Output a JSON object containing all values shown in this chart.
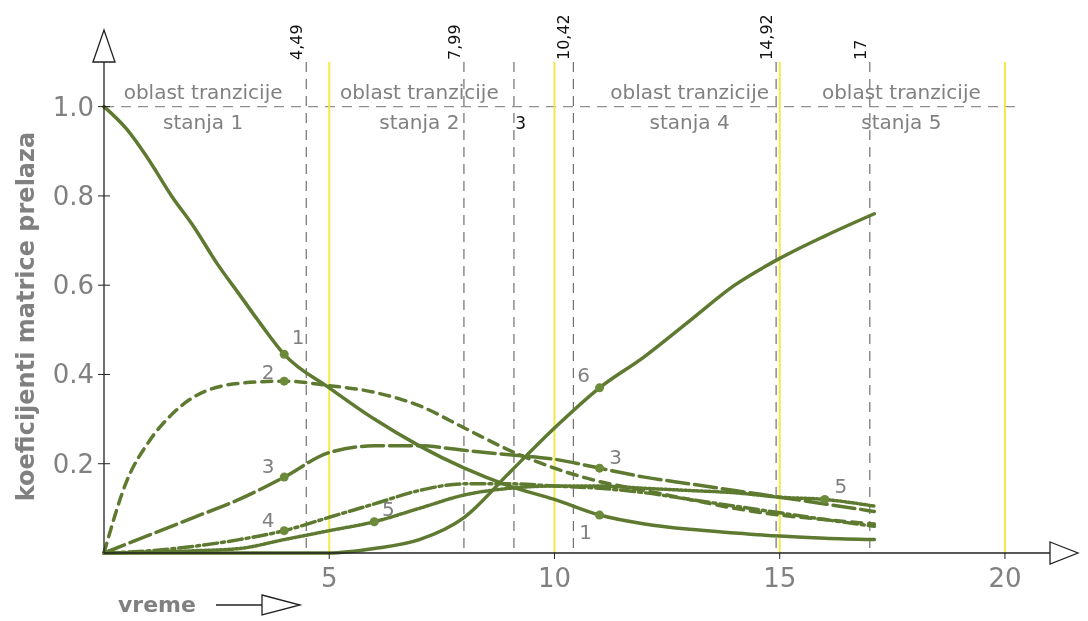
{
  "chart_data": {
    "type": "line",
    "xlabel": "vreme",
    "ylabel": "koeficijenti matrice prelaza",
    "xlim": [
      0,
      21
    ],
    "ylim": [
      0,
      1.1
    ],
    "xticks": [
      5,
      10,
      15,
      20
    ],
    "yticks": [
      0.2,
      0.4,
      0.6,
      0.8,
      {
        "value": 1,
        "label": "1.0"
      }
    ],
    "grid": false,
    "marker": "none",
    "series": [
      {
        "color": "#5e7a30",
        "line_style": "solid",
        "x": [
          0,
          0.5,
          1,
          1.5,
          2,
          2.5,
          3,
          3.5,
          4,
          5,
          6,
          7,
          8,
          9,
          10,
          11,
          12,
          13,
          14,
          15,
          16,
          17.1
        ],
        "values": [
          1.0,
          0.95,
          0.88,
          0.8,
          0.73,
          0.65,
          0.58,
          0.51,
          0.445,
          0.37,
          0.3,
          0.24,
          0.19,
          0.15,
          0.12,
          0.085,
          0.065,
          0.053,
          0.045,
          0.038,
          0.033,
          0.03
        ]
      },
      {
        "color": "#5e7a30",
        "line_style": "dashed",
        "x": [
          0,
          0.5,
          1,
          1.5,
          2,
          3,
          4,
          5,
          6,
          7,
          8,
          9,
          10,
          11,
          12,
          13,
          14,
          15,
          16,
          17.1
        ],
        "values": [
          0,
          0.16,
          0.25,
          0.31,
          0.35,
          0.38,
          0.385,
          0.375,
          0.36,
          0.33,
          0.28,
          0.23,
          0.19,
          0.16,
          0.14,
          0.12,
          0.1,
          0.085,
          0.075,
          0.065
        ]
      },
      {
        "color": "#5e7a30",
        "line_style": "longdash",
        "x": [
          0,
          1,
          2,
          3,
          4,
          5,
          6,
          7,
          8,
          9,
          10,
          11,
          12,
          13,
          14,
          15,
          16,
          17.1
        ],
        "values": [
          0,
          0.04,
          0.08,
          0.12,
          0.17,
          0.225,
          0.24,
          0.24,
          0.23,
          0.22,
          0.21,
          0.19,
          0.17,
          0.155,
          0.14,
          0.125,
          0.11,
          0.093
        ]
      },
      {
        "color": "#5e7a30",
        "line_style": "dashdot",
        "x": [
          0,
          1,
          2,
          3,
          4,
          5,
          6,
          7,
          8,
          9,
          10,
          11,
          12,
          13,
          14,
          15,
          16,
          17.1
        ],
        "values": [
          0,
          0.005,
          0.015,
          0.03,
          0.05,
          0.08,
          0.11,
          0.14,
          0.155,
          0.155,
          0.15,
          0.145,
          0.135,
          0.12,
          0.105,
          0.09,
          0.075,
          0.06
        ]
      },
      {
        "color": "#5e7a30",
        "line_style": "dotted",
        "x": [
          0,
          2,
          3,
          4,
          5,
          6,
          7,
          8,
          9,
          10,
          11,
          12,
          13,
          14,
          15,
          16,
          17.1
        ],
        "values": [
          0,
          0.005,
          0.01,
          0.03,
          0.05,
          0.07,
          0.1,
          0.13,
          0.145,
          0.15,
          0.15,
          0.145,
          0.14,
          0.135,
          0.125,
          0.12,
          0.105
        ]
      },
      {
        "color": "#5e7a30",
        "line_style": "solid",
        "x": [
          0,
          5,
          6,
          7,
          8,
          9,
          10,
          11,
          12,
          13,
          14,
          15,
          16,
          17.1
        ],
        "values": [
          0,
          0,
          0.01,
          0.03,
          0.08,
          0.18,
          0.28,
          0.37,
          0.44,
          0.52,
          0.6,
          0.66,
          0.71,
          0.76
        ]
      }
    ],
    "ref_lines": [
      {
        "axis": "y",
        "value": 1.0,
        "color": "#909090",
        "line_style": "dashed"
      },
      {
        "axis": "x",
        "value": 4.49,
        "label": "4,49",
        "color": "#707070",
        "line_style": "dashed"
      },
      {
        "axis": "x",
        "value": 7.99,
        "label": "7,99",
        "color": "#707070",
        "line_style": "dashed"
      },
      {
        "axis": "x",
        "value": 9.1,
        "color": "#707070",
        "line_style": "dashed"
      },
      {
        "axis": "x",
        "value": 10.42,
        "label": "10,42",
        "color": "#707070",
        "line_style": "dashed"
      },
      {
        "axis": "x",
        "value": 14.92,
        "label": "14,92",
        "color": "#707070",
        "line_style": "dashed"
      },
      {
        "axis": "x",
        "value": 17,
        "label": "17",
        "color": "#707070",
        "line_style": "dashed"
      },
      {
        "axis": "x",
        "value": 5,
        "color": "#f2e84a",
        "line_style": "solid"
      },
      {
        "axis": "x",
        "value": 10,
        "color": "#f2e84a",
        "line_style": "solid"
      },
      {
        "axis": "x",
        "value": 15,
        "color": "#f2e84a",
        "line_style": "solid"
      },
      {
        "axis": "x",
        "value": 20,
        "color": "#f2e84a",
        "line_style": "solid"
      }
    ],
    "annotations": [
      "oblast tranzicije\nstanja 1",
      "oblast tranzicije\nstanja 2",
      "oblast tranzicije\nstanja 4",
      "oblast tranzicije\nstanja 5",
      "3",
      {
        "text": "1",
        "x": 4,
        "y": 0.445
      },
      {
        "text": "2",
        "x": 4,
        "y": 0.385
      },
      {
        "text": "3",
        "x": 4,
        "y": 0.17
      },
      {
        "text": "4",
        "x": 4,
        "y": 0.05
      },
      {
        "text": "5",
        "x": 6,
        "y": 0.07
      },
      {
        "text": "6",
        "x": 11,
        "y": 0.37
      },
      {
        "text": "3",
        "x": 11,
        "y": 0.19
      },
      {
        "text": "1",
        "x": 11,
        "y": 0.085
      },
      {
        "text": "5",
        "x": 16,
        "y": 0.12
      }
    ]
  }
}
